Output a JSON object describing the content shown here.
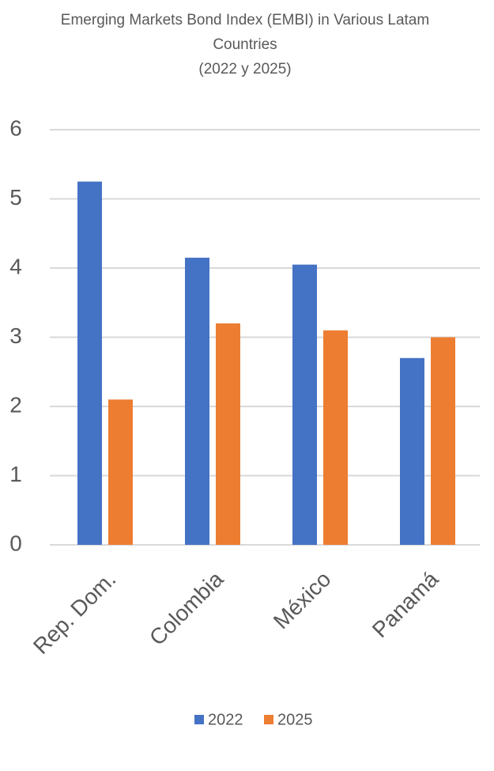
{
  "chart_data": {
    "type": "bar",
    "title": "Emerging Markets Bond Index (EMBI) in Various Latam Countries",
    "subtitle": "(2022 y 2025)",
    "categories": [
      "Rep. Dom.",
      "Colombia",
      "México",
      "Panamá"
    ],
    "series": [
      {
        "name": "2022",
        "color": "#4472c4",
        "values": [
          5.25,
          4.15,
          4.05,
          2.7
        ]
      },
      {
        "name": "2025",
        "color": "#ed7d31",
        "values": [
          2.1,
          3.2,
          3.1,
          3.0
        ]
      }
    ],
    "ylim": [
      0,
      6
    ],
    "yticks": [
      0,
      1,
      2,
      3,
      4,
      5,
      6
    ],
    "grid": true,
    "legend": "bottom"
  }
}
